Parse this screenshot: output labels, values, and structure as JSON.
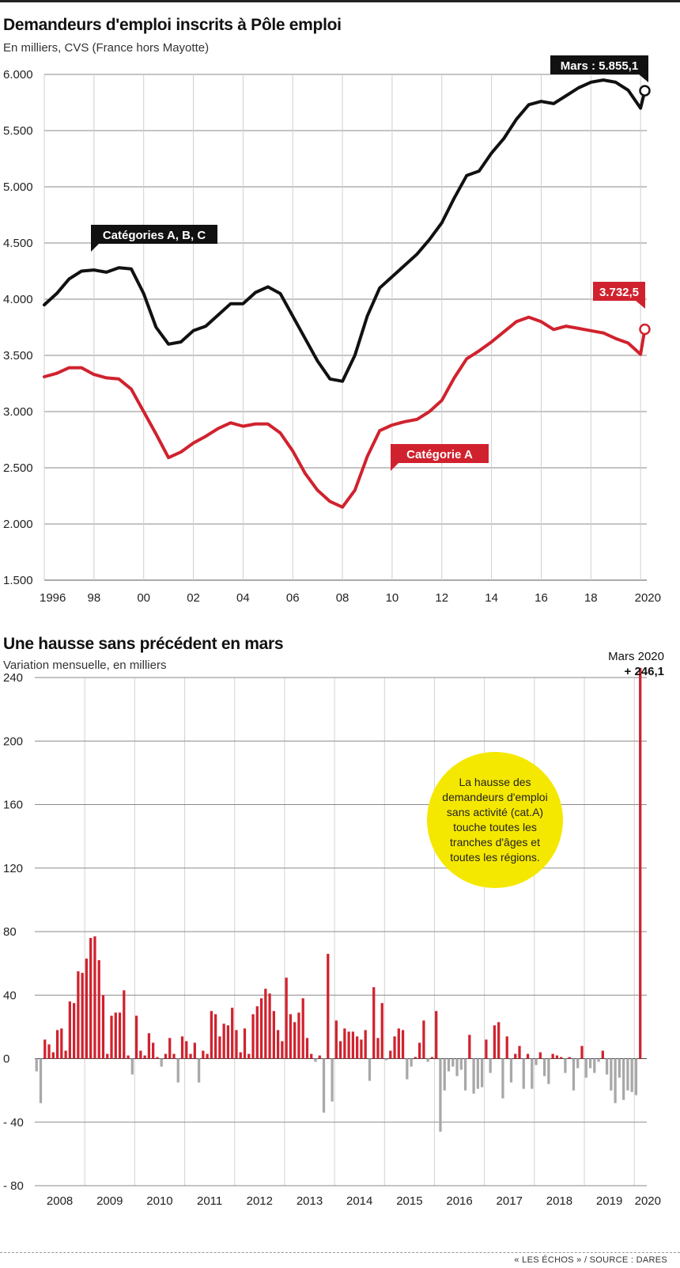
{
  "chart1": {
    "title": "Demandeurs d'emploi inscrits à Pôle emploi",
    "subtitle": "En milliers, CVS (France hors Mayotte)",
    "label_abc": "Catégories A, B, C",
    "label_a": "Catégorie A",
    "callout_abc": "Mars : 5.855,1",
    "callout_a": "3.732,5",
    "color_abc": "#111111",
    "color_a": "#d0222e",
    "source": "« LES ÉCHOS » / SOURCE : DARES"
  },
  "chart2": {
    "title": "Une hausse sans précédent en mars",
    "subtitle": "Variation mensuelle, en milliers",
    "callout_label": "Mars 2020",
    "callout_value": "+ 246,1",
    "bubble_text": "La hausse des demandeurs d'emploi sans activité (cat.A) touche toutes les tranches d'âges et toutes les régions.",
    "color_pos": "#d0222e",
    "color_neg": "#a8a8a8"
  },
  "chart_data": [
    {
      "type": "line",
      "title": "Demandeurs d'emploi inscrits à Pôle emploi",
      "subtitle": "En milliers, CVS (France hors Mayotte)",
      "xlim": [
        1996,
        2020.25
      ],
      "ylim": [
        1500,
        6000
      ],
      "yticks": [
        1500,
        2000,
        2500,
        3000,
        3500,
        4000,
        4500,
        5000,
        5500,
        6000
      ],
      "ytick_labels": [
        "1.500",
        "2.000",
        "2.500",
        "3.000",
        "3.500",
        "4.000",
        "4.500",
        "5.000",
        "5.500",
        "6.000"
      ],
      "xticks": [
        1996,
        1998,
        2000,
        2002,
        2004,
        2006,
        2008,
        2010,
        2012,
        2014,
        2016,
        2018,
        2020
      ],
      "xtick_labels": [
        "1996",
        "98",
        "00",
        "02",
        "04",
        "06",
        "08",
        "10",
        "12",
        "14",
        "16",
        "18",
        "2020"
      ],
      "grid": "horizontal",
      "series": [
        {
          "name": "Catégories A, B, C",
          "x": [
            1996.0,
            1996.5,
            1997.0,
            1997.5,
            1998.0,
            1998.5,
            1999.0,
            1999.5,
            2000.0,
            2000.5,
            2001.0,
            2001.5,
            2002.0,
            2002.5,
            2003.0,
            2003.5,
            2004.0,
            2004.5,
            2005.0,
            2005.5,
            2006.0,
            2006.5,
            2007.0,
            2007.5,
            2008.0,
            2008.5,
            2009.0,
            2009.5,
            2010.0,
            2010.5,
            2011.0,
            2011.5,
            2012.0,
            2012.5,
            2013.0,
            2013.5,
            2014.0,
            2014.5,
            2015.0,
            2015.5,
            2016.0,
            2016.5,
            2017.0,
            2017.5,
            2018.0,
            2018.5,
            2019.0,
            2019.5,
            2020.0,
            2020.17
          ],
          "values": [
            3950,
            4050,
            4180,
            4250,
            4260,
            4240,
            4280,
            4270,
            4050,
            3750,
            3600,
            3620,
            3720,
            3760,
            3860,
            3960,
            3960,
            4060,
            4110,
            4050,
            3850,
            3650,
            3450,
            3290,
            3270,
            3500,
            3850,
            4100,
            4200,
            4300,
            4400,
            4530,
            4680,
            4900,
            5100,
            5140,
            5300,
            5430,
            5600,
            5730,
            5760,
            5740,
            5810,
            5880,
            5930,
            5950,
            5930,
            5860,
            5700,
            5855.1
          ]
        },
        {
          "name": "Catégorie A",
          "x": [
            1996.0,
            1996.5,
            1997.0,
            1997.5,
            1998.0,
            1998.5,
            1999.0,
            1999.5,
            2000.0,
            2000.5,
            2001.0,
            2001.5,
            2002.0,
            2002.5,
            2003.0,
            2003.5,
            2004.0,
            2004.5,
            2005.0,
            2005.5,
            2006.0,
            2006.5,
            2007.0,
            2007.5,
            2008.0,
            2008.5,
            2009.0,
            2009.5,
            2010.0,
            2010.5,
            2011.0,
            2011.5,
            2012.0,
            2012.5,
            2013.0,
            2013.5,
            2014.0,
            2014.5,
            2015.0,
            2015.5,
            2016.0,
            2016.5,
            2017.0,
            2017.5,
            2018.0,
            2018.5,
            2019.0,
            2019.5,
            2020.0,
            2020.17
          ],
          "values": [
            3310,
            3340,
            3390,
            3390,
            3330,
            3300,
            3290,
            3200,
            3000,
            2800,
            2590,
            2640,
            2720,
            2780,
            2850,
            2900,
            2870,
            2890,
            2890,
            2810,
            2650,
            2450,
            2300,
            2200,
            2150,
            2300,
            2600,
            2830,
            2880,
            2910,
            2930,
            3000,
            3100,
            3300,
            3470,
            3540,
            3620,
            3710,
            3800,
            3840,
            3800,
            3730,
            3760,
            3740,
            3720,
            3700,
            3650,
            3610,
            3510,
            3732.5
          ]
        }
      ]
    },
    {
      "type": "bar",
      "title": "Une hausse sans précédent en mars",
      "subtitle": "Variation mensuelle, en milliers",
      "xlim": [
        2008,
        2020.25
      ],
      "ylim": [
        -80,
        240
      ],
      "yticks": [
        -80,
        -40,
        0,
        40,
        80,
        120,
        160,
        200,
        240
      ],
      "ytick_labels": [
        "- 80",
        "- 40",
        "0",
        "40",
        "80",
        "120",
        "160",
        "200",
        "240"
      ],
      "xtick_labels": [
        "2008",
        "2009",
        "2010",
        "2011",
        "2012",
        "2013",
        "2014",
        "2015",
        "2016",
        "2017",
        "2018",
        "2019",
        "2020"
      ],
      "grid": "horizontal",
      "x_start": "2008-01",
      "series": [
        {
          "name": "Variation mensuelle",
          "values": [
            -8,
            -28,
            12,
            9,
            4,
            18,
            19,
            5,
            36,
            35,
            55,
            54,
            63,
            76,
            77,
            62,
            40,
            3,
            27,
            29,
            29,
            43,
            2,
            -10,
            27,
            5,
            2,
            16,
            10,
            1,
            -5,
            3,
            13,
            3,
            -15,
            14,
            11,
            3,
            10,
            -15,
            5,
            3,
            30,
            28,
            14,
            22,
            21,
            32,
            18,
            4,
            19,
            3,
            28,
            33,
            38,
            44,
            41,
            30,
            18,
            11,
            51,
            28,
            23,
            29,
            38,
            13,
            3,
            -2,
            2,
            -34,
            66,
            -27,
            24,
            11,
            19,
            17,
            17,
            14,
            12,
            18,
            -14,
            45,
            13,
            35,
            -1,
            5,
            14,
            19,
            18,
            -13,
            -5,
            1,
            10,
            24,
            -2,
            1,
            30,
            -46,
            -20,
            -8,
            -5,
            -11,
            -7,
            -20,
            15,
            -22,
            -19,
            -18,
            12,
            -9,
            21,
            23,
            -25,
            14,
            -15,
            3,
            8,
            -19,
            3,
            -19,
            -4,
            4,
            -11,
            -16,
            3,
            2,
            1,
            -9,
            1,
            -20,
            -6,
            8,
            -12,
            -6,
            -9,
            -2,
            5,
            -10,
            -20,
            -28,
            -12,
            -26,
            -20,
            -21,
            -23,
            246.1
          ]
        }
      ]
    }
  ]
}
